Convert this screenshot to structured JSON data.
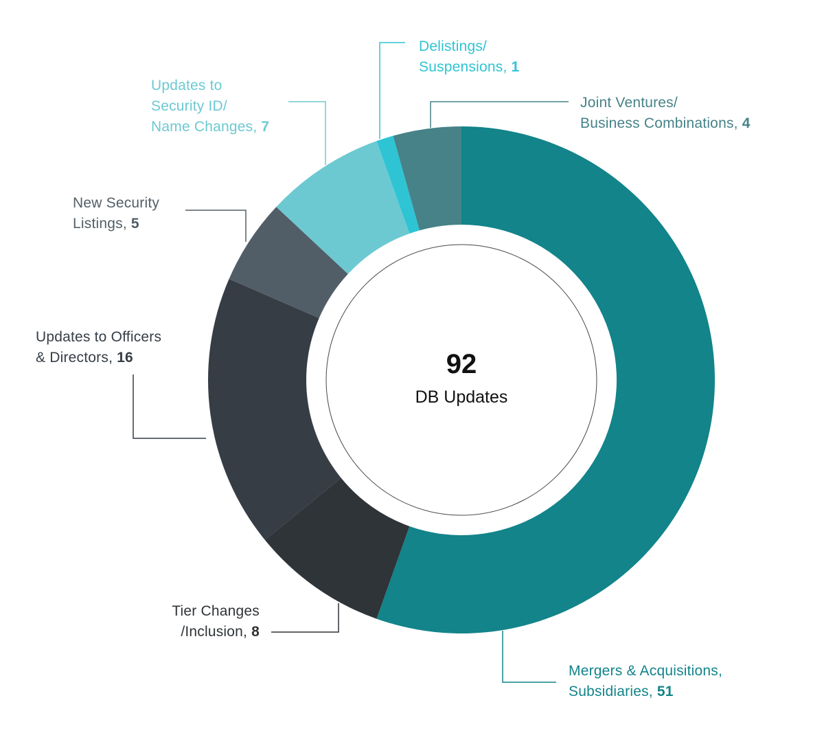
{
  "chart_data": {
    "type": "donut",
    "categories": [
      "Mergers & Acquisitions,\nSubsidiaries",
      "Tier Changes\n/Inclusion",
      "Updates to Officers\n& Directors",
      "New Security\nListings",
      "Updates to\nSecurity ID/\nName Changes",
      "Delistings/\nSuspensions",
      "Joint Ventures/\nBusiness Combinations"
    ],
    "values": [
      51,
      8,
      16,
      5,
      7,
      1,
      4
    ],
    "colors": [
      "#12848a",
      "#2f3438",
      "#363d45",
      "#525e67",
      "#6cc9d2",
      "#2ec4d4",
      "#468287"
    ],
    "label_separator": ", ",
    "center_value": 92,
    "center_label": "DB Updates"
  }
}
